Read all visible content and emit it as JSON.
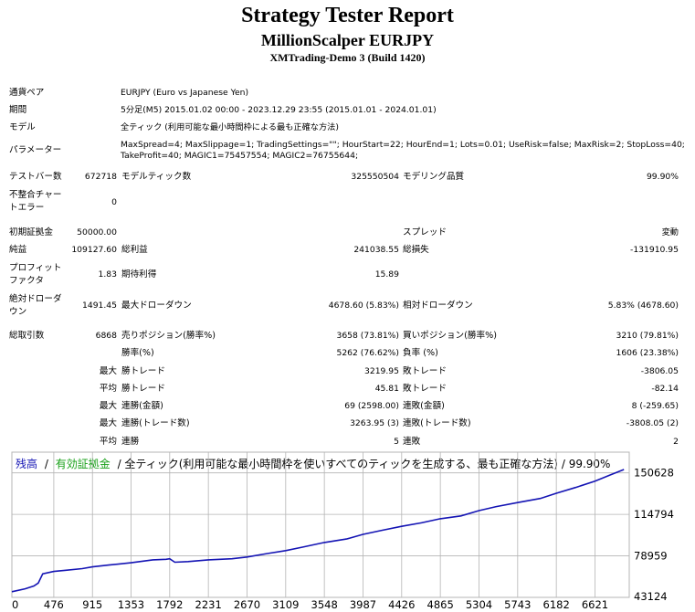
{
  "report": {
    "title": "Strategy Tester Report",
    "subtitle": "MillionScalper EURJPY",
    "account": "XMTrading-Demo 3 (Build 1420)"
  },
  "info": {
    "symbol_label": "通貨ペア",
    "symbol_value": "EURJPY (Euro vs Japanese Yen)",
    "period_label": "期間",
    "period_value": "5分足(M5) 2015.01.02 00:00 - 2023.12.29 23:55 (2015.01.01 - 2024.01.01)",
    "model_label": "モデル",
    "model_value": "全ティック (利用可能な最小時間枠による最も正確な方法)",
    "params_label": "パラメーター",
    "params_line1": "MaxSpread=4; MaxSlippage=1; TradingSettings=\"\"; HourStart=22; HourEnd=1; Lots=0.01; UseRisk=false; MaxRisk=2; StopLoss=40;",
    "params_line2": "TakeProfit=40; MAGIC1=75457554; MAGIC2=76755644;"
  },
  "stats": {
    "bars_label": "テストバー数",
    "bars_value": "672718",
    "ticks_label": "モデルティック数",
    "ticks_value": "325550504",
    "quality_label": "モデリング品質",
    "quality_value": "99.90%",
    "mismatch_label1": "不整合チャー",
    "mismatch_label2": "トエラー",
    "mismatch_value": "0",
    "deposit_label": "初期証拠金",
    "deposit_value": "50000.00",
    "spread_label": "スプレッド",
    "spread_value": "変動",
    "net_label": "純益",
    "net_value": "109127.60",
    "gross_profit_label": "総利益",
    "gross_profit_value": "241038.55",
    "gross_loss_label": "総損失",
    "gross_loss_value": "-131910.95",
    "pf_label1": "プロフィット",
    "pf_label2": "ファクタ",
    "pf_value": "1.83",
    "expected_label": "期待利得",
    "expected_value": "15.89",
    "abs_dd_label1": "絶対ドローダ",
    "abs_dd_label2": "ウン",
    "abs_dd_value": "1491.45",
    "max_dd_label": "最大ドローダウン",
    "max_dd_value": "4678.60 (5.83%)",
    "rel_dd_label": "相対ドローダウン",
    "rel_dd_value": "5.83% (4678.60)",
    "trades_label": "総取引数",
    "trades_value": "6868",
    "short_label": "売りポジション(勝率%)",
    "short_value": "3658 (73.81%)",
    "long_label": "買いポジション(勝率%)",
    "long_value": "3210 (79.81%)",
    "winrate_label": "勝率(%)",
    "winrate_value": "5262 (76.62%)",
    "lossrate_label": "負率 (%)",
    "lossrate_value": "1606 (23.38%)",
    "max_label": "最大",
    "avg_label": "平均",
    "largest_win_label": "勝トレード",
    "largest_win_value": "3219.95",
    "largest_loss_label": "敗トレード",
    "largest_loss_value": "-3806.05",
    "avg_win_label": "勝トレード",
    "avg_win_value": "45.81",
    "avg_loss_label": "敗トレード",
    "avg_loss_value": "-82.14",
    "consec_wins_amt_label": "連勝(金額)",
    "consec_wins_amt_value": "69 (2598.00)",
    "consec_loss_amt_label": "連敗(金額)",
    "consec_loss_amt_value": "8 (-259.65)",
    "consec_wins_trades_label": "連勝(トレード数)",
    "consec_wins_trades_value": "3263.95 (3)",
    "consec_loss_trades_label": "連敗(トレード数)",
    "consec_loss_trades_value": "-3808.05 (2)",
    "avg_consec_wins_label": "連勝",
    "avg_consec_wins_value": "5",
    "avg_consec_loss_label": "連敗",
    "avg_consec_loss_value": "2"
  },
  "chart_data": {
    "type": "line",
    "legend": {
      "balance": "残高",
      "separator": "/",
      "equity": "有効証拠金",
      "rest": "/ 全ティック(利用可能な最小時間枠を使いすべてのティックを生成する、最も正確な方法) / 99.90%"
    },
    "colors": {
      "balance": "#1414b4",
      "equity": "#18a018",
      "grid": "#b4b4b4",
      "text": "#000000"
    },
    "x_ticks": [
      "0",
      "476",
      "915",
      "1353",
      "1792",
      "2231",
      "2670",
      "3109",
      "3548",
      "3987",
      "4426",
      "4865",
      "5304",
      "5743",
      "6182",
      "6621"
    ],
    "y_ticks": [
      "150628",
      "114794",
      "78959",
      "43124"
    ],
    "xlim": [
      0,
      7010
    ],
    "ylim": [
      43124,
      168500
    ],
    "series": [
      {
        "key": "balance",
        "x": [
          0,
          150,
          250,
          300,
          350,
          476,
          600,
          800,
          915,
          1100,
          1353,
          1600,
          1750,
          1792,
          1850,
          2000,
          2231,
          2500,
          2670,
          2900,
          3109,
          3300,
          3548,
          3800,
          3987,
          4200,
          4426,
          4650,
          4865,
          5100,
          5304,
          5500,
          5743,
          6000,
          6182,
          6400,
          6621,
          6800,
          6950
        ],
        "y": [
          48000,
          50500,
          53000,
          55500,
          63500,
          65500,
          66500,
          68000,
          69500,
          71000,
          73000,
          75500,
          76000,
          76500,
          73500,
          74000,
          75500,
          76500,
          78000,
          81000,
          83500,
          86500,
          90500,
          93500,
          97500,
          101000,
          104500,
          107500,
          111000,
          113500,
          118000,
          121500,
          125000,
          128500,
          133000,
          138000,
          143500,
          149000,
          153500
        ]
      }
    ]
  }
}
